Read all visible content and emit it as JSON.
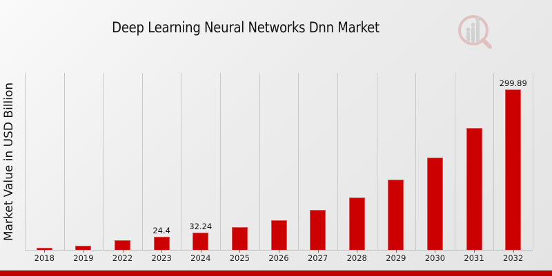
{
  "header": {
    "title": "Deep Learning Neural Networks Dnn Market"
  },
  "colors": {
    "bar": "#cc0000",
    "footer": "#c00000",
    "grid": "#c8c8c8"
  },
  "chart_data": {
    "type": "bar",
    "title": "Deep Learning Neural Networks Dnn Market",
    "xlabel": "",
    "ylabel": "Market Value in USD Billion",
    "categories": [
      "2018",
      "2019",
      "2022",
      "2023",
      "2024",
      "2025",
      "2026",
      "2027",
      "2028",
      "2029",
      "2030",
      "2031",
      "2032"
    ],
    "values": [
      4.2,
      7.2,
      18.0,
      24.4,
      32.24,
      42.8,
      55.7,
      74.5,
      98.0,
      130.6,
      172.6,
      228.0,
      299.89
    ],
    "data_labels": {
      "2023": "24.4",
      "2024": "32.24",
      "2032": "299.89"
    },
    "ylim": [
      0,
      330
    ],
    "grid": {
      "vertical": true,
      "horizontal": false
    },
    "legend": null
  }
}
